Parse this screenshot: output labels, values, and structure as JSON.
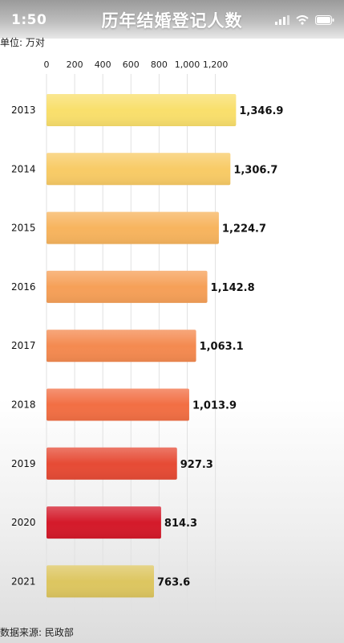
{
  "status": {
    "time": "1:50"
  },
  "header": {
    "title": "历年结婚登记人数",
    "unit": "单位: 万对",
    "source": "数据来源: 民政部"
  },
  "chart_data": {
    "type": "bar",
    "orientation": "horizontal",
    "title": "历年结婚登记人数",
    "xlabel": "",
    "ylabel": "",
    "xlim": [
      0,
      1400
    ],
    "x_ticks": [
      0,
      200,
      400,
      600,
      800,
      1000,
      1200
    ],
    "x_tick_labels": [
      "0",
      "200",
      "400",
      "600",
      "800",
      "1,000",
      "1,200"
    ],
    "categories": [
      "2013",
      "2014",
      "2015",
      "2016",
      "2017",
      "2018",
      "2019",
      "2020",
      "2021"
    ],
    "values": [
      1346.9,
      1306.7,
      1224.7,
      1142.8,
      1063.1,
      1013.9,
      927.3,
      814.3,
      763.6
    ],
    "value_labels": [
      "1,346.9",
      "1,306.7",
      "1,224.7",
      "1,142.8",
      "1,063.1",
      "1,013.9",
      "927.3",
      "814.3",
      "763.6"
    ],
    "colors": [
      "#f9df6c",
      "#f8cb66",
      "#f7b45e",
      "#f6a058",
      "#f48a50",
      "#f26f44",
      "#e64b35",
      "#d41a2a",
      "#ddc660"
    ],
    "grid": true,
    "legend": "none"
  }
}
